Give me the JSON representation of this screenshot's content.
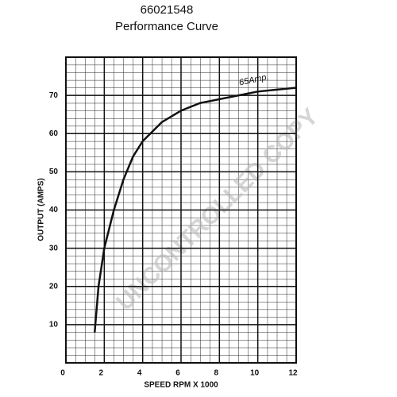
{
  "chart_data": {
    "type": "line",
    "title": "66021548",
    "subtitle": "Performance Curve",
    "x_label": "SPEED RPM X 1000",
    "y_label": "OUTPUT (AMPS)",
    "annotation": "65Amp.",
    "watermark": "UNCONTROLLED COPY",
    "series": [
      {
        "name": "65Amp.",
        "color": "#111111",
        "x": [
          1.5,
          1.7,
          2,
          2.5,
          3,
          3.5,
          4,
          5,
          6,
          7,
          8,
          9,
          10,
          11,
          12
        ],
        "values": [
          8,
          20,
          30,
          40,
          48,
          54,
          58,
          63,
          66,
          68,
          69,
          70,
          71,
          71.5,
          72
        ]
      }
    ],
    "xlim": [
      0,
      12
    ],
    "xticks": [
      0,
      2,
      4,
      6,
      8,
      10,
      12
    ],
    "ylim": [
      0,
      80
    ],
    "yticks": [
      10,
      20,
      30,
      40,
      50,
      60,
      70
    ],
    "grid": true
  }
}
